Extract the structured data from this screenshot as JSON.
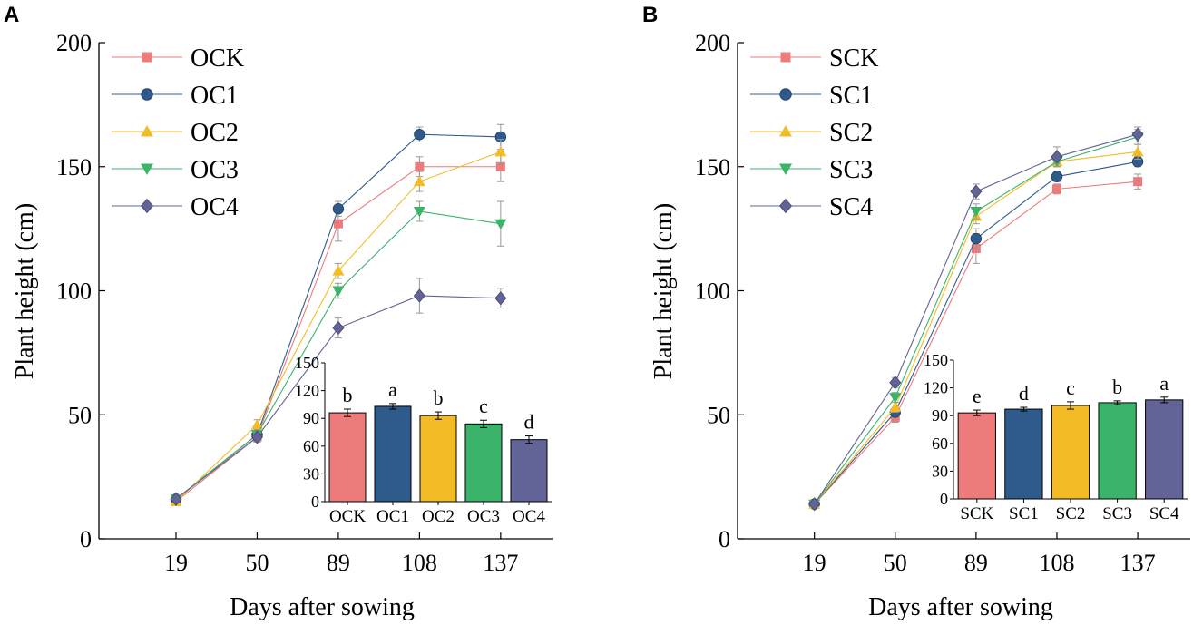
{
  "colors": {
    "red": "#EE7B7B",
    "blue": "#2E5B8C",
    "yellow": "#F3BC26",
    "green": "#3BB36A",
    "purple": "#626396",
    "error": "#999999"
  },
  "chart_data": [
    {
      "panel": "A",
      "type": "line",
      "title": "",
      "xlabel": "Days after sowing",
      "ylabel": "Plant height (cm)",
      "categories": [
        "19",
        "50",
        "89",
        "108",
        "137"
      ],
      "ylim": [
        0,
        200
      ],
      "yticks": [
        0,
        50,
        100,
        150,
        200
      ],
      "legend": "top-left",
      "series": [
        {
          "name": "OCK",
          "marker": "square",
          "color": "#EE7B7B",
          "values": [
            15,
            41,
            127,
            150,
            150
          ],
          "errors": [
            1,
            2,
            7,
            4,
            6
          ]
        },
        {
          "name": "OC1",
          "marker": "circle",
          "color": "#2E5B8C",
          "values": [
            16,
            42,
            133,
            163,
            162
          ],
          "errors": [
            1,
            2,
            3,
            3,
            5
          ]
        },
        {
          "name": "OC2",
          "marker": "triangle",
          "color": "#F3BC26",
          "values": [
            15,
            46,
            108,
            144,
            156
          ],
          "errors": [
            1,
            2,
            3,
            4,
            5
          ]
        },
        {
          "name": "OC3",
          "marker": "triangle-down",
          "color": "#3BB36A",
          "values": [
            16,
            42,
            100,
            132,
            127
          ],
          "errors": [
            1,
            2,
            3,
            4,
            9
          ]
        },
        {
          "name": "OC4",
          "marker": "diamond",
          "color": "#626396",
          "values": [
            16,
            41,
            85,
            98,
            97
          ],
          "errors": [
            1,
            2,
            4,
            7,
            4
          ]
        }
      ],
      "inset": {
        "type": "bar",
        "categories": [
          "OCK",
          "OC1",
          "OC2",
          "OC3",
          "OC4"
        ],
        "values": [
          96,
          103,
          93,
          84,
          67
        ],
        "errors": [
          4,
          3,
          4,
          4,
          4
        ],
        "letters": [
          "b",
          "a",
          "b",
          "c",
          "d"
        ],
        "ylim": [
          0,
          150
        ],
        "yticks": [
          0,
          30,
          60,
          90,
          120,
          150
        ]
      }
    },
    {
      "panel": "B",
      "type": "line",
      "title": "",
      "xlabel": "Days after sowing",
      "ylabel": "Plant height (cm)",
      "categories": [
        "19",
        "50",
        "89",
        "108",
        "137"
      ],
      "ylim": [
        0,
        200
      ],
      "yticks": [
        0,
        50,
        100,
        150,
        200
      ],
      "legend": "top-left",
      "series": [
        {
          "name": "SCK",
          "marker": "square",
          "color": "#EE7B7B",
          "values": [
            14,
            49,
            117,
            141,
            144
          ],
          "errors": [
            1,
            2,
            6,
            2,
            3
          ]
        },
        {
          "name": "SC1",
          "marker": "circle",
          "color": "#2E5B8C",
          "values": [
            14,
            51,
            121,
            146,
            152
          ],
          "errors": [
            1,
            2,
            4,
            2,
            2
          ]
        },
        {
          "name": "SC2",
          "marker": "triangle",
          "color": "#F3BC26",
          "values": [
            14,
            53,
            130,
            152,
            156
          ],
          "errors": [
            1,
            2,
            3,
            2,
            3
          ]
        },
        {
          "name": "SC3",
          "marker": "triangle-down",
          "color": "#3BB36A",
          "values": [
            14,
            57,
            132,
            152,
            162
          ],
          "errors": [
            1,
            2,
            3,
            2,
            3
          ]
        },
        {
          "name": "SC4",
          "marker": "diamond",
          "color": "#626396",
          "values": [
            14,
            63,
            140,
            154,
            163
          ],
          "errors": [
            1,
            2,
            3,
            4,
            3
          ]
        }
      ],
      "inset": {
        "type": "bar",
        "categories": [
          "SCK",
          "SC1",
          "SC2",
          "SC3",
          "SC4"
        ],
        "values": [
          93,
          97,
          101,
          104,
          107
        ],
        "errors": [
          3,
          2,
          4,
          2,
          3
        ],
        "letters": [
          "e",
          "d",
          "c",
          "b",
          "a"
        ],
        "ylim": [
          0,
          150
        ],
        "yticks": [
          0,
          30,
          60,
          90,
          120,
          150
        ]
      }
    }
  ]
}
